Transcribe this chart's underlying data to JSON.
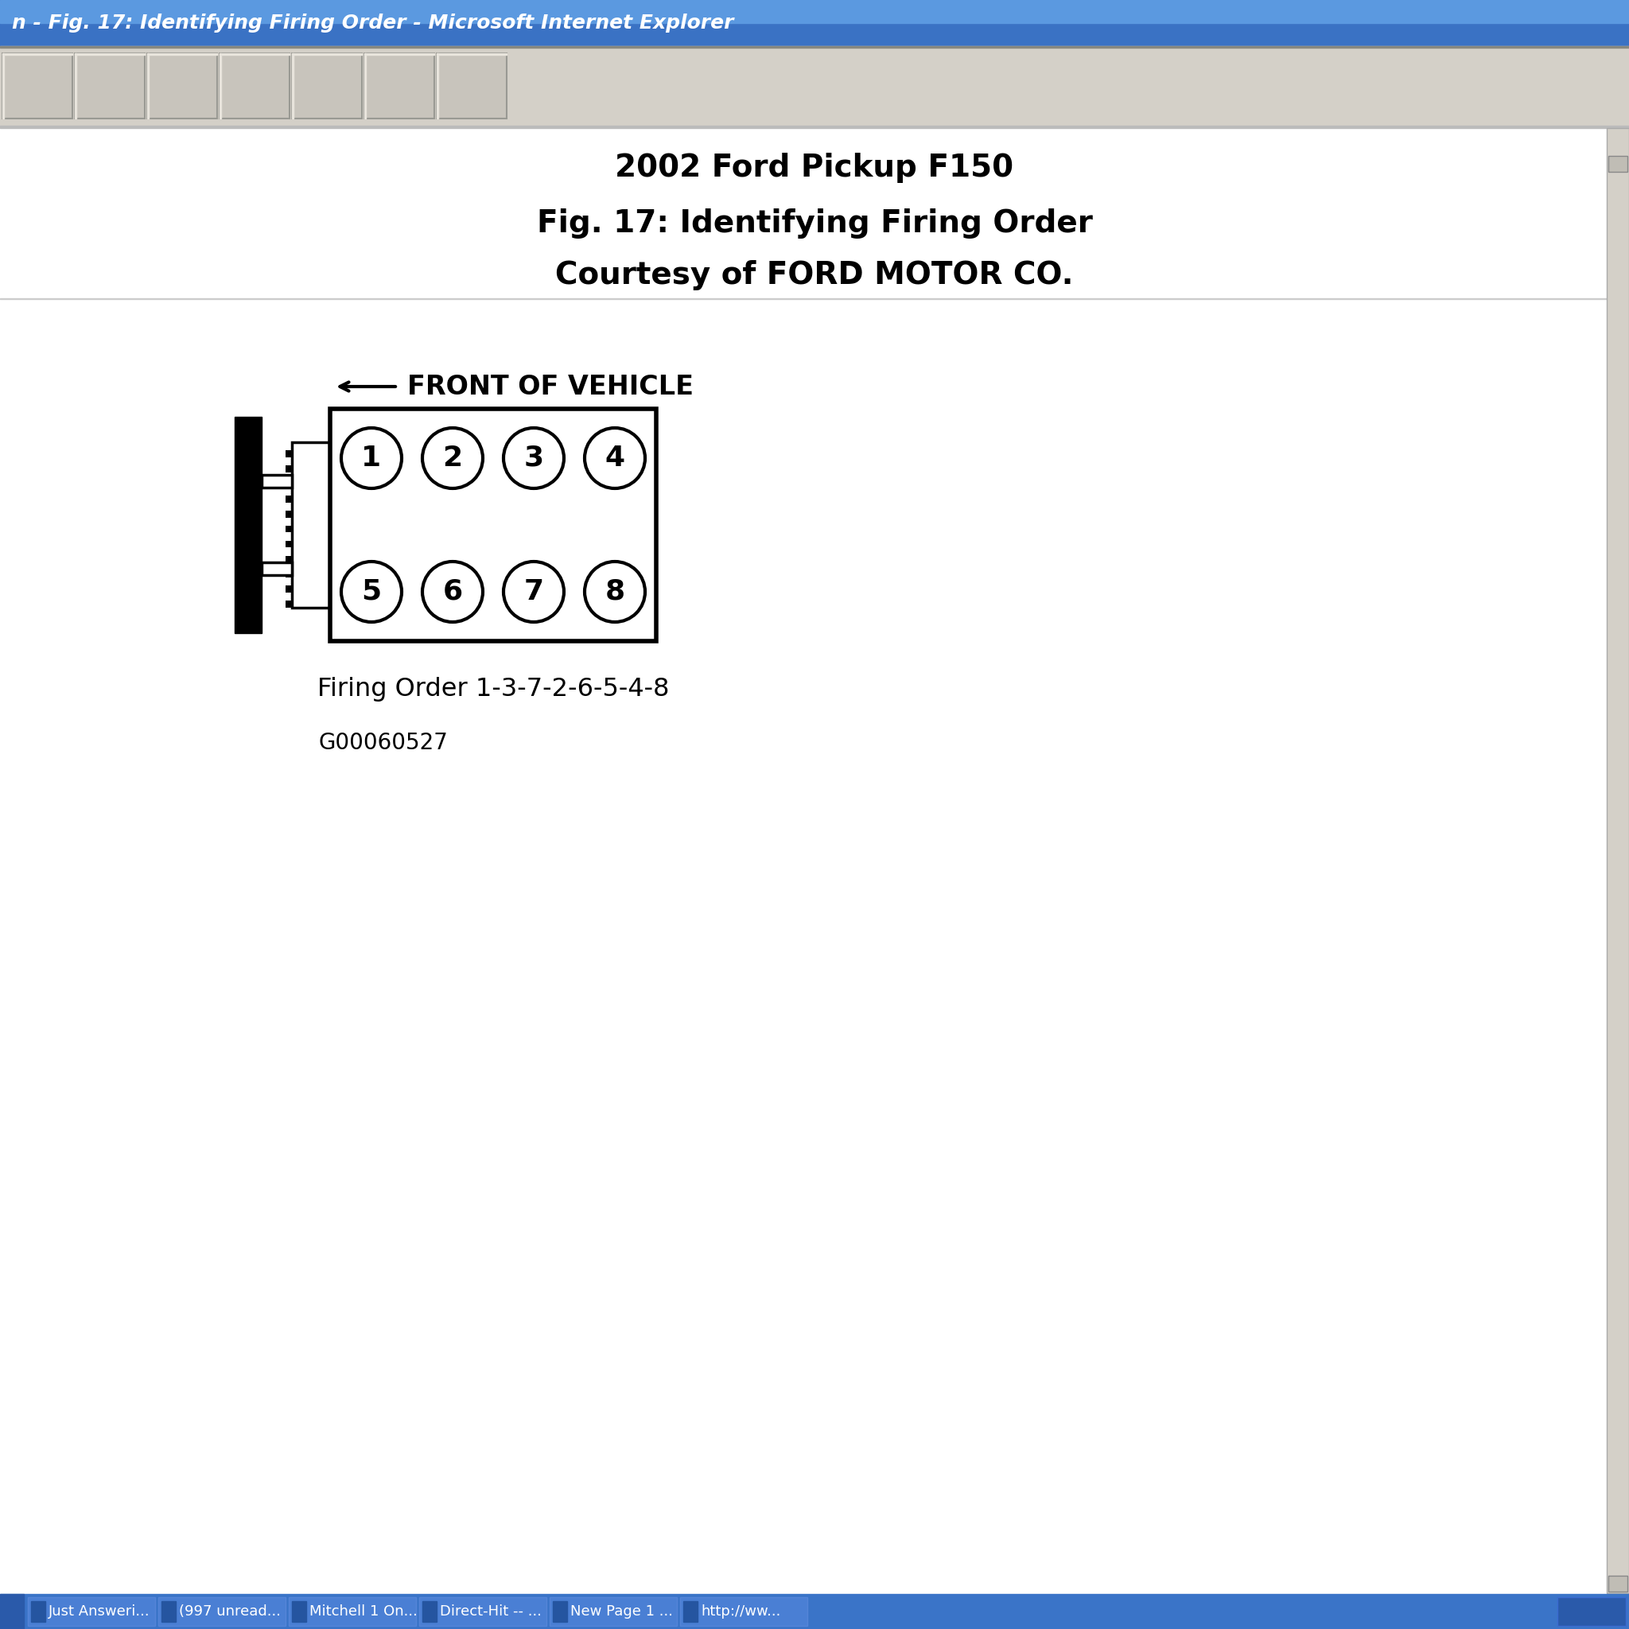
{
  "title_line1": "2002 Ford Pickup F150",
  "title_line2": "Fig. 17: Identifying Firing Order",
  "title_line3": "Courtesy of FORD MOTOR CO.",
  "firing_order_label": "Firing Order 1-3-7-2-6-5-4-8",
  "part_number": "G00060527",
  "top_cylinders": [
    "1",
    "2",
    "3",
    "4"
  ],
  "bottom_cylinders": [
    "5",
    "6",
    "7",
    "8"
  ],
  "titlebar_color_top": "#5b9bd5",
  "titlebar_color_bot": "#2060b0",
  "titlebar_text_color": "#ffffff",
  "toolbar_bg": "#d4d0c8",
  "content_bg": "#ffffff",
  "text_color": "#000000",
  "browser_title": "n - Fig. 17: Identifying Firing Order - Microsoft Internet Explorer",
  "taskbar_bg": "#3a74c8",
  "taskbar_items": [
    "Just Answeri...",
    "(997 unread...",
    "Mitchell 1 On...",
    "Direct-Hit -- ...",
    "New Page 1 ...",
    "http://ww..."
  ]
}
